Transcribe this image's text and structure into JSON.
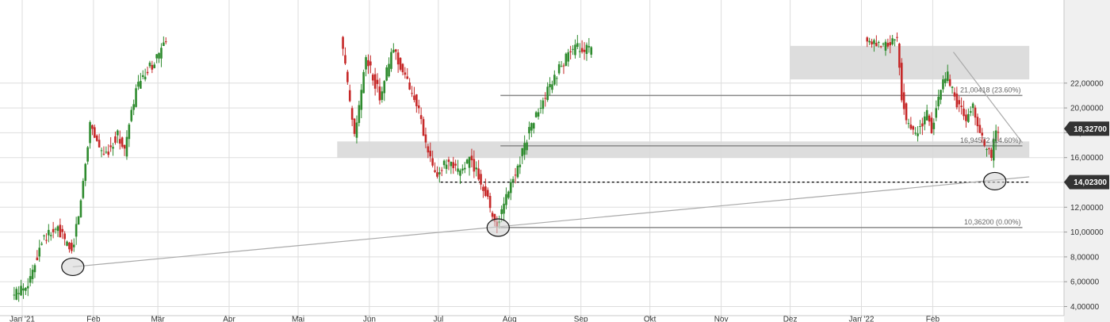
{
  "chart_data": {
    "type": "candlestick",
    "title": "",
    "xlabel": "",
    "ylabel": "",
    "ylim": [
      3.6,
      24.2
    ],
    "y_ticks": [
      {
        "value": 4,
        "label": "4,00000"
      },
      {
        "value": 6,
        "label": "6,00000"
      },
      {
        "value": 8,
        "label": "8,00000"
      },
      {
        "value": 10,
        "label": "10,00000"
      },
      {
        "value": 12,
        "label": "12,00000"
      },
      {
        "value": 14,
        "label": "14,00000"
      },
      {
        "value": 16,
        "label": "16,00000"
      },
      {
        "value": 18,
        "label": "18,00000"
      },
      {
        "value": 20,
        "label": "20,00000"
      },
      {
        "value": 22,
        "label": "22,00000"
      }
    ],
    "x_ticks": [
      {
        "date": "2021-01-01",
        "label": "Jan '21"
      },
      {
        "date": "2021-02-01",
        "label": "Feb"
      },
      {
        "date": "2021-03-01",
        "label": "Mär"
      },
      {
        "date": "2021-04-01",
        "label": "Apr"
      },
      {
        "date": "2021-05-01",
        "label": "Mai"
      },
      {
        "date": "2021-06-01",
        "label": "Jun"
      },
      {
        "date": "2021-07-01",
        "label": "Jul"
      },
      {
        "date": "2021-08-01",
        "label": "Aug"
      },
      {
        "date": "2021-09-01",
        "label": "Sep"
      },
      {
        "date": "2021-10-01",
        "label": "Okt"
      },
      {
        "date": "2021-11-01",
        "label": "Nov"
      },
      {
        "date": "2021-12-01",
        "label": "Dez"
      },
      {
        "date": "2022-01-01",
        "label": "Jan '22"
      },
      {
        "date": "2022-02-01",
        "label": "Feb"
      }
    ],
    "price_path": [
      [
        "2020-12-28",
        4.7
      ],
      [
        "2021-01-05",
        6.2
      ],
      [
        "2021-01-10",
        9.5
      ],
      [
        "2021-01-17",
        10.2
      ],
      [
        "2021-01-23",
        8.4
      ],
      [
        "2021-01-27",
        12.5
      ],
      [
        "2021-01-31",
        18.8
      ],
      [
        "2021-02-06",
        16.0
      ],
      [
        "2021-02-12",
        17.9
      ],
      [
        "2021-02-15",
        16.5
      ],
      [
        "2021-02-20",
        21.5
      ],
      [
        "2021-02-27",
        23.5
      ],
      [
        "2021-03-05",
        25.2
      ],
      [
        "2021-05-20",
        26.0
      ],
      [
        "2021-05-26",
        17.5
      ],
      [
        "2021-05-31",
        24.0
      ],
      [
        "2021-06-06",
        21.0
      ],
      [
        "2021-06-12",
        24.8
      ],
      [
        "2021-06-18",
        22.0
      ],
      [
        "2021-06-22",
        20.5
      ],
      [
        "2021-06-26",
        17.0
      ],
      [
        "2021-06-30",
        14.6
      ],
      [
        "2021-07-05",
        15.5
      ],
      [
        "2021-07-10",
        14.8
      ],
      [
        "2021-07-15",
        15.8
      ],
      [
        "2021-07-18",
        14.9
      ],
      [
        "2021-07-22",
        13.2
      ],
      [
        "2021-07-25",
        11.4
      ],
      [
        "2021-07-27",
        10.5
      ],
      [
        "2021-07-31",
        12.8
      ],
      [
        "2021-08-05",
        15.3
      ],
      [
        "2021-08-10",
        18.2
      ],
      [
        "2021-08-16",
        20.5
      ],
      [
        "2021-08-22",
        22.8
      ],
      [
        "2021-08-27",
        24.4
      ],
      [
        "2021-09-01",
        24.9
      ],
      [
        "2021-09-06",
        24.6
      ],
      [
        "2022-01-03",
        25.3
      ],
      [
        "2022-01-10",
        24.8
      ],
      [
        "2022-01-17",
        25.6
      ],
      [
        "2022-01-19",
        21.0
      ],
      [
        "2022-01-21",
        19.0
      ],
      [
        "2022-01-25",
        17.8
      ],
      [
        "2022-01-30",
        19.5
      ],
      [
        "2022-02-01",
        18.2
      ],
      [
        "2022-02-05",
        21.6
      ],
      [
        "2022-02-08",
        22.6
      ],
      [
        "2022-02-12",
        20.4
      ],
      [
        "2022-02-16",
        19.2
      ],
      [
        "2022-02-19",
        20.0
      ],
      [
        "2022-02-23",
        17.4
      ],
      [
        "2022-02-27",
        16.0
      ],
      [
        "2022-02-28",
        17.3
      ],
      [
        "2022-03-02",
        18.3
      ]
    ],
    "colors": {
      "up": "#2e8b2e",
      "down": "#c62828",
      "grid": "#dddddd",
      "zone": "#d9d9d9",
      "level": "#888888",
      "trend": "#aaaaaa",
      "badge": "#333333",
      "axis_bg": "#f0f0f0"
    },
    "zones": [
      {
        "from": "2021-05-18",
        "to": "2022-03-15",
        "low": 16.0,
        "high": 17.3
      },
      {
        "from": "2021-12-01",
        "to": "2022-03-15",
        "low": 22.3,
        "high": 25.0
      }
    ],
    "levels": [
      {
        "name": "fib-23-6",
        "value": 21.00418,
        "from": "2021-07-28",
        "to": "2022-03-12",
        "label": "21,00418 (23.60%)"
      },
      {
        "name": "fib-14-6",
        "value": 16.94572,
        "from": "2021-07-28",
        "to": "2022-03-12",
        "label": "16,94572 (14.60%)"
      },
      {
        "name": "fib-0",
        "value": 10.362,
        "from": "2021-07-28",
        "to": "2022-03-12",
        "label": "10,36200 (0.00%)"
      },
      {
        "name": "support-dashed",
        "value": 14.023,
        "from": "2021-07-02",
        "to": "2022-03-15",
        "dashed": true,
        "label": ""
      }
    ],
    "trendlines": [
      {
        "name": "ascending-support",
        "from": [
          "2021-01-23",
          7.2
        ],
        "to": [
          "2022-03-15",
          14.45
        ]
      },
      {
        "name": "descending-resistance",
        "from": [
          "2022-02-10",
          24.5
        ],
        "to": [
          "2022-03-12",
          17.2
        ]
      }
    ],
    "marker_circles": [
      {
        "name": "low-jan-21",
        "date": "2021-01-23",
        "value": 7.2
      },
      {
        "name": "low-jul-21",
        "date": "2021-07-27",
        "value": 10.36
      },
      {
        "name": "low-feb-22",
        "date": "2022-02-28",
        "value": 14.1
      }
    ],
    "price_badges": [
      {
        "name": "current-price",
        "value": 18.327,
        "label": "18,32700"
      },
      {
        "name": "support-price",
        "value": 14.023,
        "label": "14,02300"
      }
    ]
  }
}
